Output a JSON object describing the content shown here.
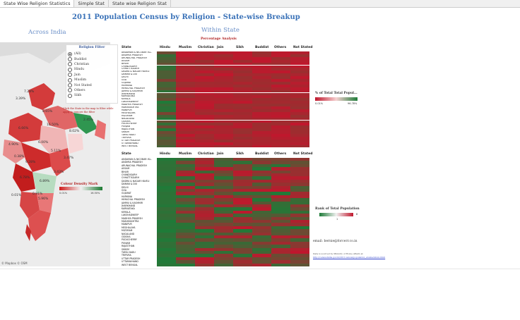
{
  "tabs": [
    "State Wise Religion Statistics",
    "Simple Stat",
    "State wise Religion Stat"
  ],
  "title": "2011 Population Census by Religion - State-wise Breakup",
  "left_subtitle": "Across India",
  "right_subtitle": "Within State",
  "percentage_label": "Percentage Analysis",
  "filter": {
    "title": "Religion Filter",
    "options": [
      "(All)",
      "Buddist",
      "Christian",
      "Hindu",
      "Jain",
      "Muslim",
      "Not Stated",
      "Others",
      "Sikh"
    ],
    "selected": "(All)"
  },
  "map_hint": "Click the State in the map to filter while apply to remove the filter",
  "colour_density": {
    "title": "Colour Density Mark",
    "min": "0.01%",
    "max": "16.50%"
  },
  "map_labels": [
    "7.28%",
    "3.39%",
    "8.65%",
    "16.50%",
    "6.66%",
    "8.02%",
    "4.90%",
    "9.28%",
    "6.00%",
    "5.11%",
    "3.47%",
    "2.45%",
    "0.01%",
    "0.91%",
    "6.89%",
    "5.96%",
    "6.78%",
    "3.43%",
    "0.38%"
  ],
  "map_copyright": "© Mapbox © OSM",
  "columns": [
    "State",
    "Hindu",
    "Muslim",
    "Christian",
    "Jain",
    "Sikh",
    "Buddist",
    "Others",
    "Not Stated"
  ],
  "states": [
    "ANDAMAN & NICOBAR ISL..",
    "ANDHRA PRADESH",
    "ARUNACHAL PRADESH",
    "ASSAM",
    "BIHAR",
    "CHANDIGARH",
    "CHHATTISGARH",
    "DADRA & NAGAR HAVELI",
    "DAMAN & DIU",
    "DELHI",
    "GOA",
    "GUJARAT",
    "HARYANA",
    "HIMACHAL PRADESH",
    "JAMMU & KASHMIR",
    "JHARKHAND",
    "KARNATAKA",
    "KERALA",
    "LAKSHADWEEP",
    "MADHYA PRADESH",
    "MAHARASHTRA",
    "MANIPUR",
    "MEGHALAYA",
    "MIZORAM",
    "NAGALAND",
    "ODISHA",
    "PUDUCHERRY",
    "PUNJAB",
    "RAJASTHAN",
    "SIKKIM",
    "TAMIL NADU",
    "TRIPURA",
    "UTTAR PRADESH",
    "UTTARAKHAND",
    "WEST BENGAL"
  ],
  "pct_legend": {
    "title": "% of Total Total Popul...",
    "min": "0.01%",
    "max": "96.78%"
  },
  "rank_legend": {
    "title": "Rank of Total Population",
    "min": "1",
    "max": "8"
  },
  "email": "email: bernie@forcerr.co.in",
  "note": "Data is sourced by Ministry of Home Affairs at",
  "note_link": "http://censusindia.gov.in/2011census/population_enumeration.html",
  "colors": {
    "red": "#c0172d",
    "green": "#1e7b38",
    "title_blue": "#3a72b8"
  }
}
